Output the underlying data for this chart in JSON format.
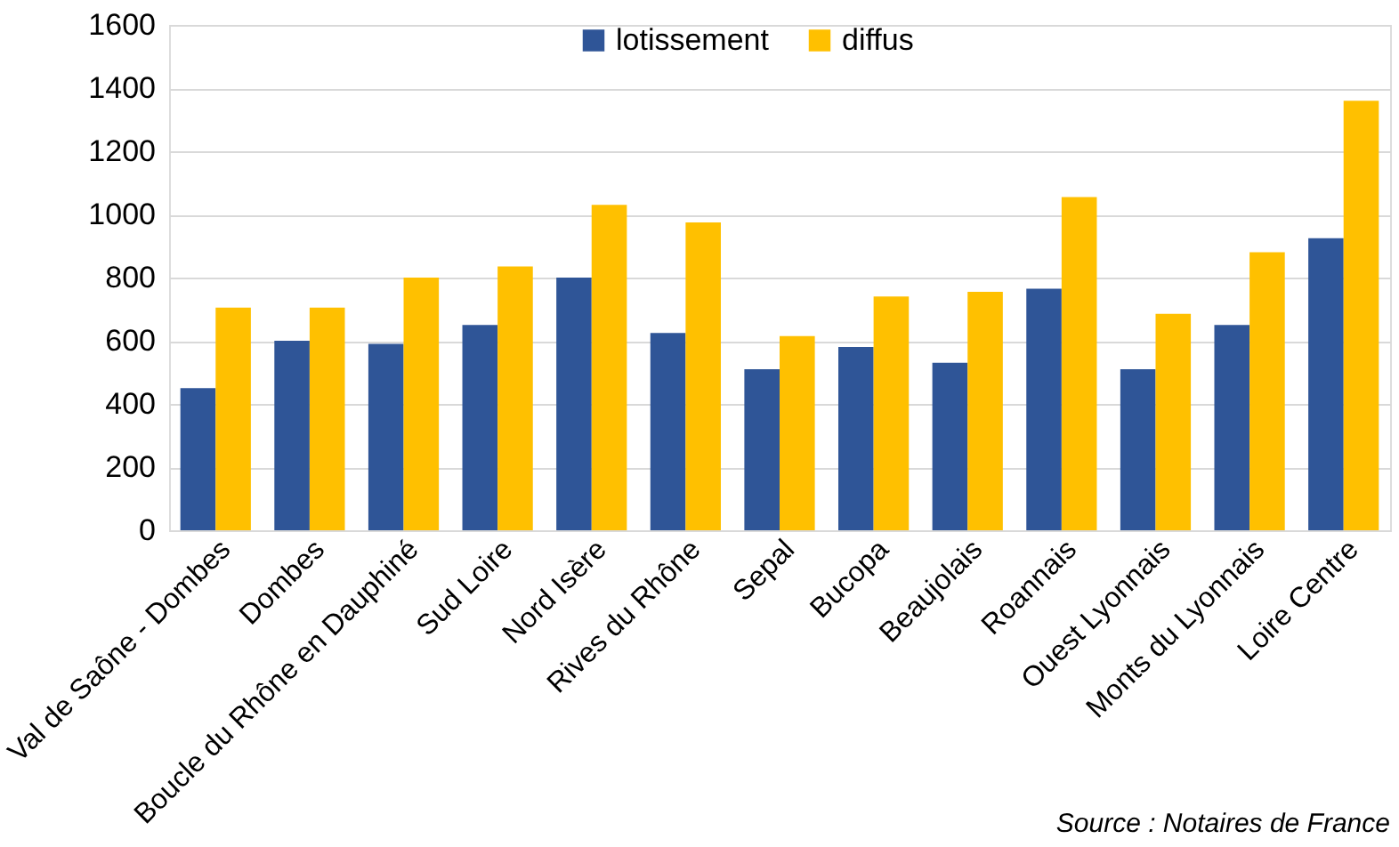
{
  "chart_data": {
    "type": "bar",
    "categories": [
      "Val de Saône - Dombes",
      "Dombes",
      "Boucle du Rhône en Dauphiné",
      "Sud Loire",
      "Nord Isère",
      "Rives du Rhône",
      "Sepal",
      "Bucopa",
      "Beaujolais",
      "Roannais",
      "Ouest Lyonnais",
      "Monts du Lyonnais",
      "Loire Centre"
    ],
    "series": [
      {
        "name": "lotissement",
        "color": "#2f5597",
        "values": [
          450,
          600,
          590,
          650,
          800,
          625,
          510,
          580,
          530,
          765,
          510,
          650,
          925
        ]
      },
      {
        "name": "diffus",
        "color": "#ffc000",
        "values": [
          705,
          705,
          800,
          835,
          1030,
          975,
          615,
          740,
          755,
          1055,
          685,
          880,
          1360
        ]
      }
    ],
    "ylim": [
      0,
      1600
    ],
    "yticks": [
      0,
      200,
      400,
      600,
      800,
      1000,
      1200,
      1400,
      1600
    ],
    "grid": "y",
    "legend": "top",
    "annotations": [
      "Source : Notaires de France"
    ]
  }
}
